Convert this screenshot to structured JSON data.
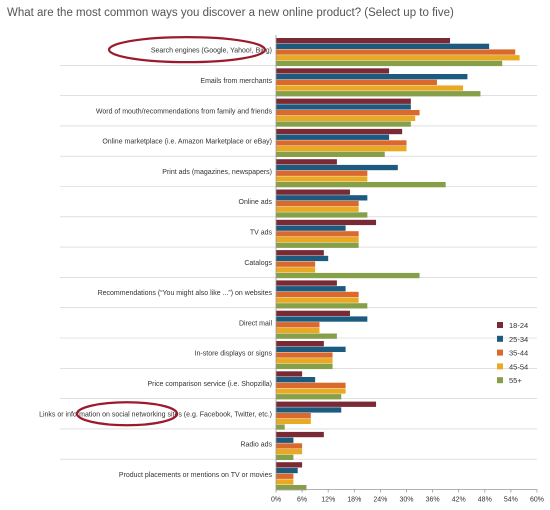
{
  "chart_data": {
    "type": "bar",
    "orientation": "horizontal",
    "title": "What are the most common ways you discover a new online product? (Select up to five)",
    "categories": [
      "Search engines (Google, Yahoo!, Bing)",
      "Emails from merchants",
      "Word of mouth/recommendations from family and friends",
      "Online marketplace (i.e. Amazon Marketplace or eBay)",
      "Print ads (magazines, newspapers)",
      "Online ads",
      "TV ads",
      "Catalogs",
      "Recommendations (“You might also like ...”) on websites",
      "Direct mail",
      "In-store displays or signs",
      "Price comparison service (i.e. Shopzilla)",
      "Links or information on social networking sites (e.g. Facebook, Twitter, etc.)",
      "Radio ads",
      "Product placements or mentions on TV or movies"
    ],
    "series": [
      {
        "name": "18-24",
        "color": "#7a2a35",
        "values": [
          40,
          26,
          31,
          29,
          14,
          17,
          23,
          11,
          14,
          17,
          11,
          6,
          23,
          11,
          6
        ]
      },
      {
        "name": "25-34",
        "color": "#1d5a80",
        "values": [
          49,
          44,
          31,
          26,
          28,
          21,
          16,
          12,
          16,
          21,
          16,
          9,
          15,
          4,
          5
        ]
      },
      {
        "name": "35-44",
        "color": "#d9692d",
        "values": [
          55,
          37,
          33,
          30,
          21,
          19,
          19,
          9,
          19,
          10,
          13,
          16,
          8,
          6,
          4
        ]
      },
      {
        "name": "45-54",
        "color": "#e8aa25",
        "values": [
          56,
          43,
          32,
          30,
          21,
          19,
          19,
          9,
          19,
          10,
          13,
          16,
          8,
          6,
          4
        ]
      },
      {
        "name": "55+",
        "color": "#86a04a",
        "values": [
          52,
          47,
          31,
          25,
          39,
          21,
          19,
          33,
          21,
          14,
          13,
          15,
          2,
          4,
          7
        ]
      }
    ],
    "xlim": [
      0,
      60
    ],
    "x_ticks": [
      "0%",
      "6%",
      "12%",
      "18%",
      "24%",
      "30%",
      "36%",
      "42%",
      "48%",
      "54%",
      "60%"
    ],
    "legend": [
      "18-24",
      "25-34",
      "35-44",
      "45-54",
      "55+"
    ],
    "legend_position": "right",
    "grid": false,
    "highlighted_categories": [
      "Search engines (Google, Yahoo!, Bing)",
      "Links or information on social networking sites (e.g. Facebook, Twitter, etc.)"
    ],
    "highlight_color": "#9b1b2c",
    "axis_color": "#999999",
    "separator_color": "#cccccc"
  }
}
